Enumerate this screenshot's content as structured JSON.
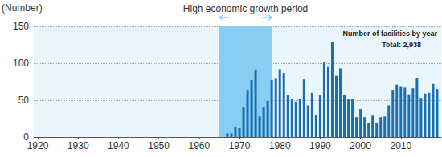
{
  "chart_data": {
    "type": "bar",
    "y_label": "(Number)",
    "x": [
      1967,
      1968,
      1969,
      1970,
      1971,
      1972,
      1973,
      1974,
      1975,
      1976,
      1977,
      1978,
      1979,
      1980,
      1981,
      1982,
      1983,
      1984,
      1985,
      1986,
      1987,
      1988,
      1989,
      1990,
      1991,
      1992,
      1993,
      1994,
      1995,
      1996,
      1997,
      1998,
      1999,
      2000,
      2001,
      2002,
      2003,
      2004,
      2005,
      2006,
      2007,
      2008,
      2009,
      2010,
      2011,
      2012,
      2013,
      2014,
      2015,
      2016,
      2017,
      2018,
      2019
    ],
    "values": [
      5,
      5,
      14,
      12,
      40,
      64,
      77,
      91,
      28,
      40,
      49,
      77,
      79,
      92,
      87,
      57,
      52,
      48,
      52,
      78,
      43,
      60,
      30,
      57,
      101,
      95,
      129,
      83,
      93,
      57,
      51,
      51,
      27,
      38,
      27,
      19,
      29,
      19,
      27,
      28,
      43,
      64,
      71,
      69,
      67,
      58,
      66,
      80,
      53,
      59,
      60,
      72,
      65
    ],
    "color": "#1a6fb0",
    "xlim": [
      1919,
      2020
    ],
    "xticks": [
      1920,
      1930,
      1940,
      1950,
      1960,
      1970,
      1980,
      1990,
      2000,
      2010
    ],
    "ylim": [
      0,
      150
    ],
    "yticks": [
      0,
      50,
      100,
      150
    ],
    "grid": true,
    "annotations": [
      {
        "text": "High economic growth period",
        "x_range": [
          1965,
          1978
        ],
        "color": "#88cdf2"
      },
      {
        "text": "Number of facilities by year"
      },
      {
        "text": "Total: 2,938"
      }
    ]
  }
}
